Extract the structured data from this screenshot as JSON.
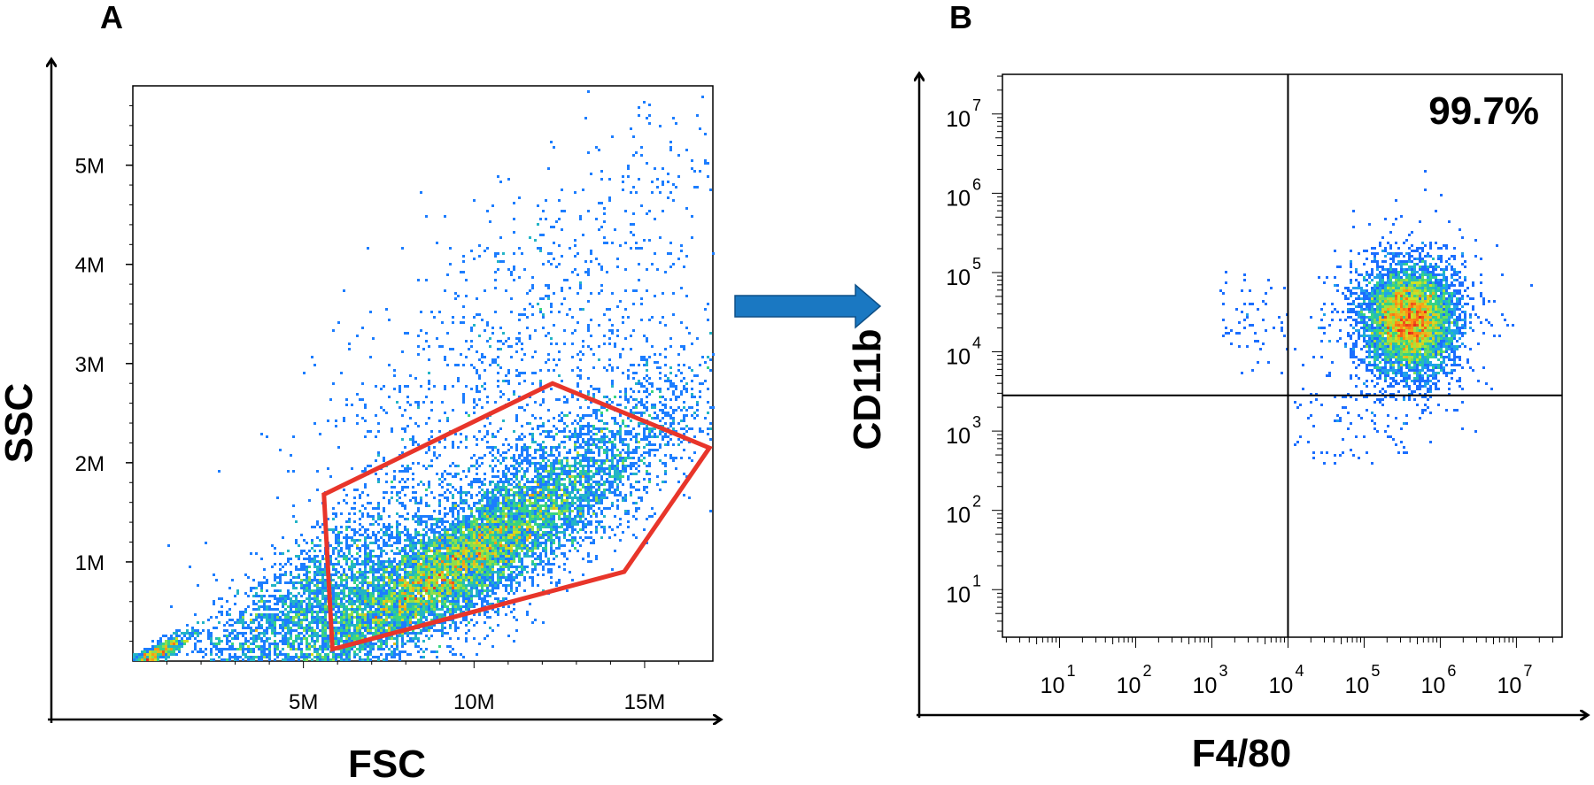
{
  "figure": {
    "panel_a_letter": "A",
    "panel_b_letter": "B"
  },
  "colors": {
    "gate": "#e8352a",
    "arrow": "#1a78c2",
    "density_low": "#1414ff",
    "density_mid": "#22c9a0",
    "density_high": "#e8352a"
  },
  "chart_data": [
    {
      "type": "scatter",
      "panel": "A",
      "title": "",
      "xlabel": "FSC",
      "ylabel": "SSC",
      "xlim": [
        0,
        17
      ],
      "ylim": [
        0,
        5.8
      ],
      "x_units": "M",
      "y_units": "M",
      "xticks": [
        5,
        10,
        15
      ],
      "xtick_labels": [
        "5M",
        "10M",
        "15M"
      ],
      "yticks": [
        1,
        2,
        3,
        4,
        5
      ],
      "ytick_labels": [
        "1M",
        "2M",
        "3M",
        "4M",
        "5M"
      ],
      "density_clusters": [
        {
          "x": 9.0,
          "y": 0.85,
          "sx": 2.2,
          "sy": 0.35,
          "n": 6000
        },
        {
          "x": 12.0,
          "y": 1.6,
          "sx": 2.6,
          "sy": 0.55,
          "n": 3500
        },
        {
          "x": 5.0,
          "y": 0.55,
          "sx": 2.0,
          "sy": 0.45,
          "n": 2500
        },
        {
          "x": 0.6,
          "y": 0.05,
          "sx": 0.6,
          "sy": 0.08,
          "n": 600
        },
        {
          "x": 11.0,
          "y": 3.0,
          "sx": 3.5,
          "sy": 1.2,
          "n": 1200
        }
      ],
      "gate_polygon": [
        [
          5.6,
          1.68
        ],
        [
          12.3,
          2.8
        ],
        [
          16.9,
          2.15
        ],
        [
          14.4,
          0.9
        ],
        [
          5.85,
          0.12
        ]
      ]
    },
    {
      "type": "scatter",
      "panel": "B",
      "title": "",
      "xlabel": "F4/80",
      "ylabel": "CD11b",
      "x_scale": "log",
      "y_scale": "log",
      "xlim_log10": [
        0.25,
        7.6
      ],
      "ylim_log10": [
        0.4,
        7.5
      ],
      "xtick_exponents": [
        1,
        2,
        3,
        4,
        5,
        6,
        7
      ],
      "ytick_exponents": [
        1,
        2,
        3,
        4,
        5,
        6,
        7
      ],
      "tick_base": "10",
      "quadrant_x_log10": 4.0,
      "quadrant_y_log10": 3.45,
      "quadrant_label": "99.7%",
      "density_clusters": [
        {
          "x": 5.6,
          "y": 4.4,
          "sx": 0.28,
          "sy": 0.32,
          "n": 5000
        },
        {
          "x": 5.55,
          "y": 4.4,
          "sx": 0.45,
          "sy": 0.5,
          "n": 1200
        }
      ]
    }
  ]
}
